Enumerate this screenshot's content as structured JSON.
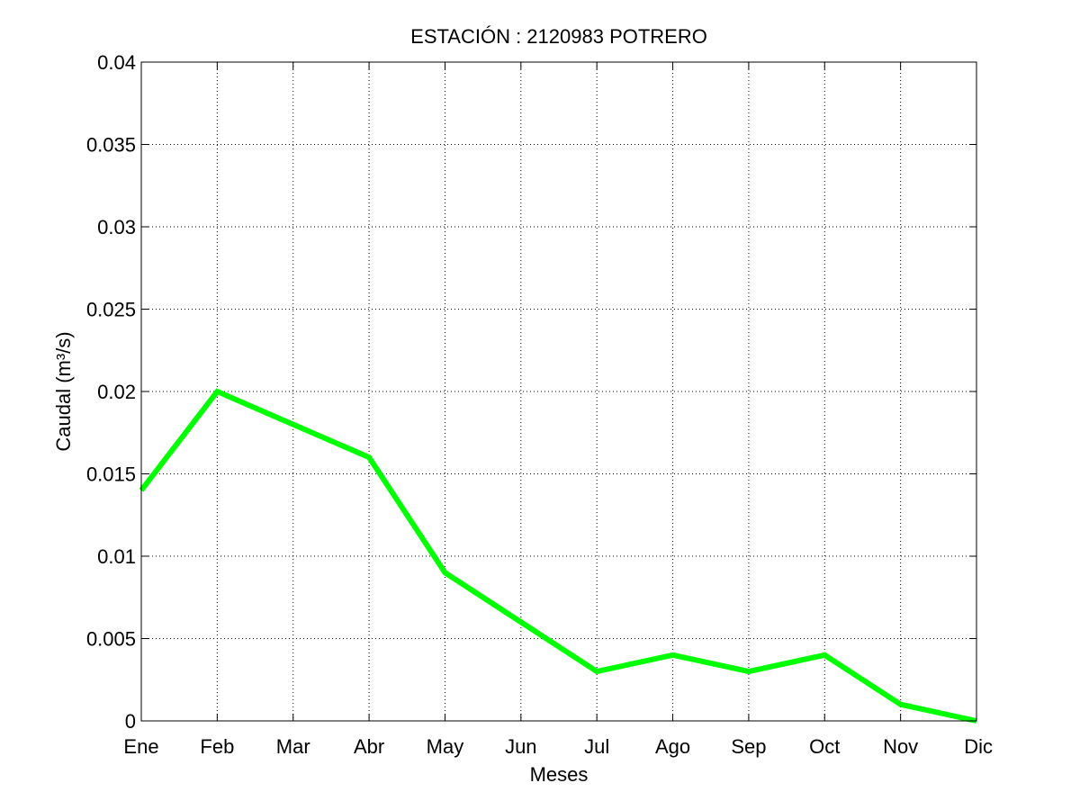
{
  "chart_data": {
    "type": "line",
    "title": "ESTACIÓN :  2120983  POTRERO",
    "xlabel": "Meses",
    "ylabel": "Caudal (m³/s)",
    "categories": [
      "Ene",
      "Feb",
      "Mar",
      "Abr",
      "May",
      "Jun",
      "Jul",
      "Ago",
      "Sep",
      "Oct",
      "Nov",
      "Dic"
    ],
    "series": [
      {
        "values": [
          0.014,
          0.02,
          0.018,
          0.016,
          0.009,
          0.006,
          0.003,
          0.004,
          0.003,
          0.004,
          0.001,
          0.0
        ]
      }
    ],
    "ylim": [
      0,
      0.04
    ],
    "yticks": [
      "0",
      "0.005",
      "0.01",
      "0.015",
      "0.02",
      "0.025",
      "0.03",
      "0.035",
      "0.04"
    ],
    "grid": true,
    "line_color": "#00ff00"
  }
}
